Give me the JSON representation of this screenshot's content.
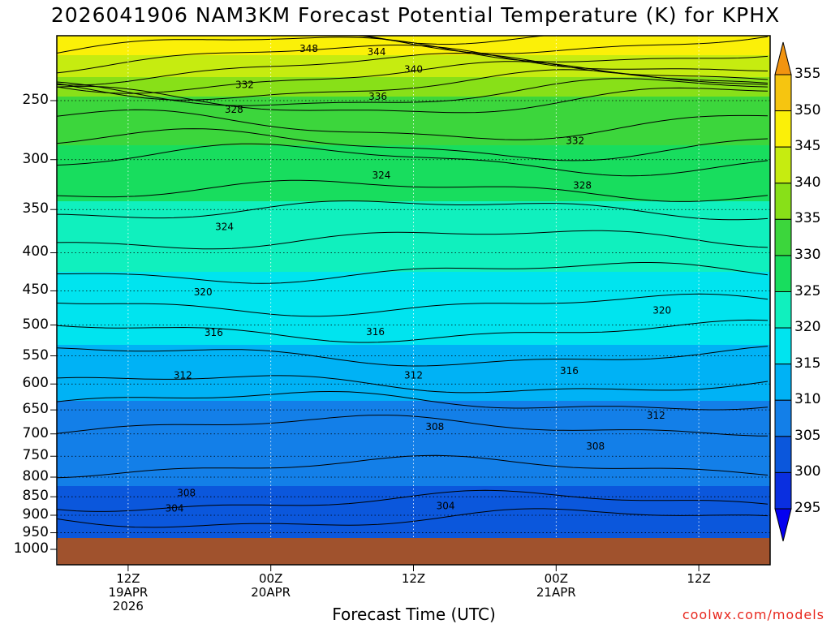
{
  "chart_data": {
    "type": "heatmap",
    "title": "2026041906 NAM3KM Forecast Potential Temperature (K) for KPHX",
    "xlabel": "Forecast Time (UTC)",
    "ylabel": "",
    "credit": "coolwx.com/models",
    "y_axis": {
      "scale": "log-pressure",
      "range_hpa": [
        1000,
        200
      ],
      "tick_labels": [
        "250",
        "300",
        "350",
        "400",
        "450",
        "500",
        "550",
        "600",
        "650",
        "700",
        "750",
        "800",
        "850",
        "900",
        "950",
        "1000"
      ],
      "tick_values": [
        250,
        300,
        350,
        400,
        450,
        500,
        550,
        600,
        650,
        700,
        750,
        800,
        850,
        900,
        950,
        1000
      ]
    },
    "x_axis": {
      "range_hours_from_init": [
        0,
        60
      ],
      "ticks": [
        {
          "hour": 6,
          "label": "12Z",
          "label2": "19APR",
          "label3": "2026"
        },
        {
          "hour": 18,
          "label": "00Z",
          "label2": "20APR",
          "label3": ""
        },
        {
          "hour": 30,
          "label": "12Z",
          "label2": "",
          "label3": ""
        },
        {
          "hour": 42,
          "label": "00Z",
          "label2": "21APR",
          "label3": ""
        },
        {
          "hour": 54,
          "label": "12Z",
          "label2": "",
          "label3": ""
        }
      ]
    },
    "colorbar": {
      "labels": [
        "295",
        "300",
        "305",
        "310",
        "315",
        "320",
        "325",
        "330",
        "335",
        "340",
        "345",
        "350",
        "355"
      ],
      "levels": [
        295,
        300,
        305,
        310,
        315,
        320,
        325,
        330,
        335,
        340,
        345,
        350,
        355
      ],
      "colors": [
        "#0400f0",
        "#0a2fe0",
        "#0b57dc",
        "#137fe8",
        "#00b2f5",
        "#00e4ef",
        "#10f0be",
        "#18dd5e",
        "#3cd63c",
        "#88e018",
        "#c6ec10",
        "#fbf008",
        "#f6c510",
        "#f29410"
      ]
    },
    "contour_labels": [
      {
        "value": "348",
        "hour": 21.2,
        "hpa": 213
      },
      {
        "value": "344",
        "hour": 26.9,
        "hpa": 215
      },
      {
        "value": "340",
        "hour": 30.0,
        "hpa": 227
      },
      {
        "value": "336",
        "hour": 27.0,
        "hpa": 247
      },
      {
        "value": "332",
        "hour": 15.8,
        "hpa": 238
      },
      {
        "value": "328",
        "hour": 14.9,
        "hpa": 257
      },
      {
        "value": "332",
        "hour": 43.6,
        "hpa": 283
      },
      {
        "value": "328",
        "hour": 44.2,
        "hpa": 325
      },
      {
        "value": "324",
        "hour": 27.3,
        "hpa": 315
      },
      {
        "value": "324",
        "hour": 14.1,
        "hpa": 369
      },
      {
        "value": "320",
        "hour": 12.3,
        "hpa": 452
      },
      {
        "value": "320",
        "hour": 50.9,
        "hpa": 478
      },
      {
        "value": "316",
        "hour": 13.2,
        "hpa": 512
      },
      {
        "value": "316",
        "hour": 26.8,
        "hpa": 511
      },
      {
        "value": "316",
        "hour": 43.1,
        "hpa": 576
      },
      {
        "value": "312",
        "hour": 10.6,
        "hpa": 584
      },
      {
        "value": "312",
        "hour": 30.0,
        "hpa": 584
      },
      {
        "value": "312",
        "hour": 50.4,
        "hpa": 661
      },
      {
        "value": "308",
        "hour": 31.8,
        "hpa": 685
      },
      {
        "value": "308",
        "hour": 45.3,
        "hpa": 727
      },
      {
        "value": "308",
        "hour": 10.9,
        "hpa": 840
      },
      {
        "value": "304",
        "hour": 9.9,
        "hpa": 881
      },
      {
        "value": "304",
        "hour": 32.7,
        "hpa": 875
      }
    ],
    "field_profile": {
      "description": "",
      "levels_hpa": [
        200,
        230,
        250,
        280,
        300,
        330,
        350,
        400,
        450,
        500,
        550,
        600,
        650,
        700,
        750,
        800,
        850,
        900,
        950
      ],
      "theta_k": [
        350,
        341,
        334,
        331,
        328,
        326,
        324,
        321,
        319,
        316.5,
        314,
        312,
        309,
        307.5,
        306.5,
        305.5,
        304.5,
        302.5,
        300
      ]
    },
    "grid": true,
    "terrain_color": "#a0522d"
  }
}
